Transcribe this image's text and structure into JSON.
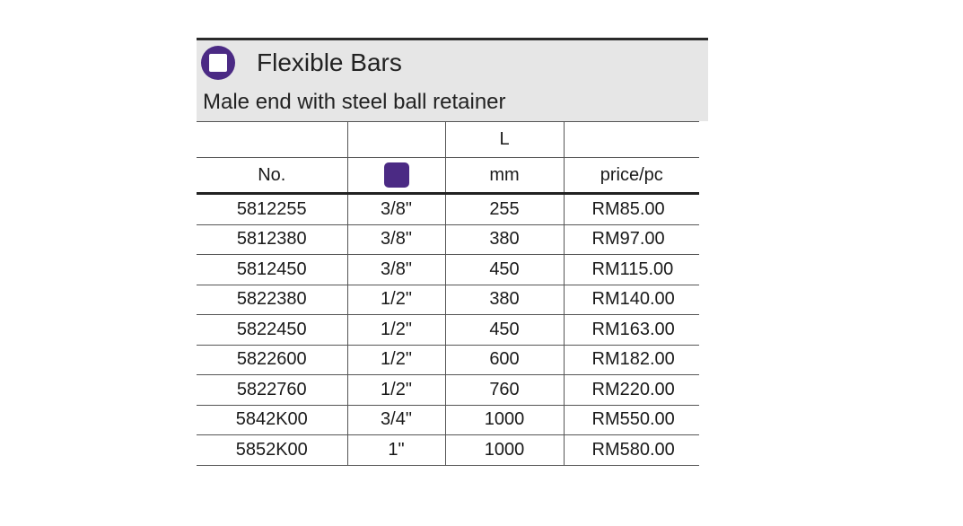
{
  "header": {
    "title": "Flexible Bars",
    "subtitle": "Male end with steel ball retainer"
  },
  "table": {
    "header_top": [
      "",
      "",
      "L",
      ""
    ],
    "header_bottom": {
      "no": "No.",
      "drive_icon": "square-drive-icon",
      "length_unit": "mm",
      "price": "price/pc"
    },
    "rows": [
      {
        "no": "5812255",
        "drive": "3/8\"",
        "length": "255",
        "price": "RM85.00"
      },
      {
        "no": "5812380",
        "drive": "3/8\"",
        "length": "380",
        "price": "RM97.00"
      },
      {
        "no": "5812450",
        "drive": "3/8\"",
        "length": "450",
        "price": "RM115.00"
      },
      {
        "no": "5822380",
        "drive": "1/2\"",
        "length": "380",
        "price": "RM140.00"
      },
      {
        "no": "5822450",
        "drive": "1/2\"",
        "length": "450",
        "price": "RM163.00"
      },
      {
        "no": "5822600",
        "drive": "1/2\"",
        "length": "600",
        "price": "RM182.00"
      },
      {
        "no": "5822760",
        "drive": "1/2\"",
        "length": "760",
        "price": "RM220.00"
      },
      {
        "no": "5842K00",
        "drive": "3/4\"",
        "length": "1000",
        "price": "RM550.00"
      },
      {
        "no": "5852K00",
        "drive": "1\"",
        "length": "1000",
        "price": "RM580.00"
      }
    ]
  },
  "colors": {
    "accent": "#4b2a84",
    "header_bg": "#e6e6e6"
  }
}
